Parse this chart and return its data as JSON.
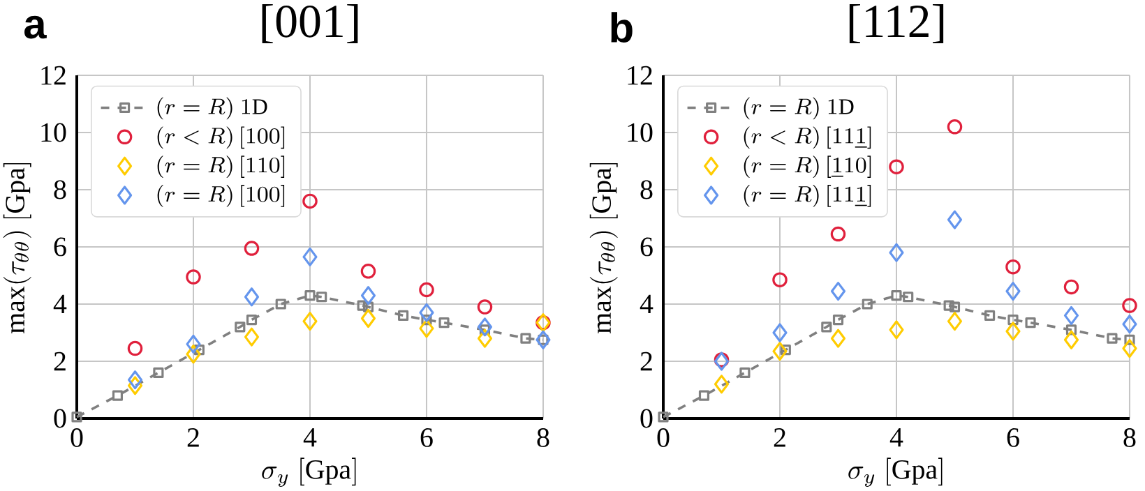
{
  "chart_data": [
    {
      "type": "scatter",
      "title": "[001]",
      "annotations": [
        "a"
      ],
      "xlabel": "\\sigma_y\\ [\\mathrm{Gpa}]",
      "ylabel": "\\max(\\tau_{\\theta\\theta})\\ [\\mathrm{Gpa}]",
      "xlim": [
        0,
        8
      ],
      "ylim": [
        0,
        12
      ],
      "xticks": [
        0,
        2,
        4,
        6,
        8
      ],
      "yticks": [
        0,
        2,
        4,
        6,
        8,
        10,
        12
      ],
      "grid": true,
      "legend": "top left",
      "series": [
        {
          "name": "(r=R)\\ 1\\mathrm{D}",
          "type": "line",
          "color": "#808080",
          "marker": "square",
          "line_style": "dashed",
          "x": [
            0,
            0.7,
            1.4,
            2.1,
            2.8,
            3.0,
            3.5,
            4.0,
            4.2,
            4.9,
            5.0,
            5.6,
            6.0,
            6.3,
            7.0,
            7.7,
            8.0
          ],
          "values": [
            0.05,
            0.8,
            1.6,
            2.4,
            3.2,
            3.45,
            4.0,
            4.3,
            4.25,
            3.95,
            3.9,
            3.6,
            3.45,
            3.35,
            3.1,
            2.8,
            2.75
          ]
        },
        {
          "name": "(r<R)\\,[100]",
          "type": "scatter",
          "color": "#e0203c",
          "marker": "circle",
          "x": [
            1,
            2,
            3,
            4,
            5,
            6,
            7,
            8
          ],
          "values": [
            2.45,
            4.95,
            5.95,
            7.6,
            5.15,
            4.5,
            3.9,
            3.35
          ]
        },
        {
          "name": "(r=R)\\,[110]",
          "type": "scatter",
          "color": "#ffcc00",
          "marker": "diamond",
          "x": [
            1,
            2,
            3,
            4,
            5,
            6,
            7,
            8
          ],
          "values": [
            1.15,
            2.25,
            2.85,
            3.4,
            3.5,
            3.15,
            2.8,
            3.35
          ]
        },
        {
          "name": "(r=R)\\,[100]",
          "type": "scatter",
          "color": "#6495ed",
          "marker": "diamond",
          "x": [
            1,
            2,
            3,
            4,
            5,
            6,
            7,
            8
          ],
          "values": [
            1.35,
            2.6,
            4.25,
            5.65,
            4.3,
            3.7,
            3.2,
            2.75
          ]
        }
      ]
    },
    {
      "type": "scatter",
      "title": "[112]",
      "annotations": [
        "b"
      ],
      "xlabel": "\\sigma_y\\ [\\mathrm{Gpa}]",
      "ylabel": "\\max(\\tau_{\\theta\\theta})\\ [\\mathrm{Gpa}]",
      "xlim": [
        0,
        8
      ],
      "ylim": [
        0,
        12
      ],
      "xticks": [
        0,
        2,
        4,
        6,
        8
      ],
      "yticks": [
        0,
        2,
        4,
        6,
        8,
        10,
        12
      ],
      "grid": true,
      "legend": "top left",
      "series": [
        {
          "name": "(r=R)\\ 1\\mathrm{D}",
          "type": "line",
          "color": "#808080",
          "marker": "square",
          "line_style": "dashed",
          "x": [
            0,
            0.7,
            1.4,
            2.1,
            2.8,
            3.0,
            3.5,
            4.0,
            4.2,
            4.9,
            5.0,
            5.6,
            6.0,
            6.3,
            7.0,
            7.7,
            8.0
          ],
          "values": [
            0.05,
            0.8,
            1.6,
            2.4,
            3.2,
            3.45,
            4.0,
            4.3,
            4.25,
            3.95,
            3.9,
            3.6,
            3.45,
            3.35,
            3.1,
            2.8,
            2.75
          ]
        },
        {
          "name": "(r<R)\\,[11\\underline{1}]",
          "type": "scatter",
          "color": "#e0203c",
          "marker": "circle",
          "x": [
            1,
            2,
            3,
            4,
            5,
            6,
            7,
            8
          ],
          "values": [
            2.05,
            4.85,
            6.45,
            8.8,
            10.2,
            5.3,
            4.6,
            3.95
          ]
        },
        {
          "name": "(r=R)\\,[\\underline{1}10]",
          "type": "scatter",
          "color": "#ffcc00",
          "marker": "diamond",
          "x": [
            1,
            2,
            3,
            4,
            5,
            6,
            7,
            8
          ],
          "values": [
            1.2,
            2.35,
            2.8,
            3.1,
            3.4,
            3.05,
            2.75,
            2.45
          ]
        },
        {
          "name": "(r=R)\\,[11\\underline{1}]",
          "type": "scatter",
          "color": "#6495ed",
          "marker": "diamond",
          "x": [
            1,
            2,
            3,
            4,
            5,
            6,
            7,
            8
          ],
          "values": [
            2.0,
            3.0,
            4.45,
            5.8,
            6.95,
            4.45,
            3.6,
            3.3
          ]
        }
      ]
    }
  ]
}
